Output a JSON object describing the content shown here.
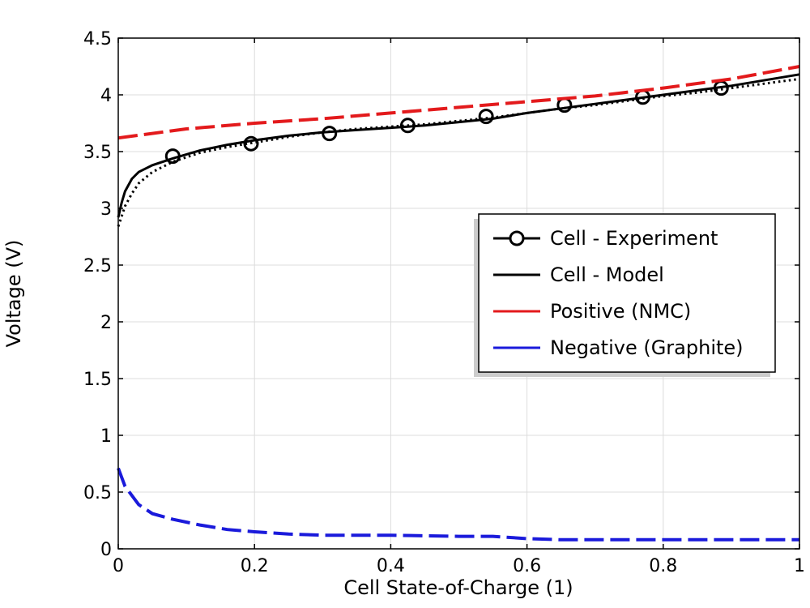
{
  "chart_data": {
    "type": "line",
    "xlabel": "Cell State-of-Charge (1)",
    "ylabel": "Voltage (V)",
    "xlim": [
      0,
      1
    ],
    "ylim": [
      0,
      4.5
    ],
    "xticks": [
      "0",
      "0.2",
      "0.4",
      "0.6",
      "0.8",
      "1"
    ],
    "yticks": [
      "0",
      "0.5",
      "1",
      "1.5",
      "2",
      "2.5",
      "3",
      "3.5",
      "4",
      "4.5"
    ],
    "grid": true,
    "legend_position": "center-right",
    "series": [
      {
        "name": "Cell - Experiment",
        "style": "markers-circle",
        "color": "#000000",
        "x": [
          0.08,
          0.195,
          0.31,
          0.425,
          0.54,
          0.655,
          0.77,
          0.885
        ],
        "y": [
          3.46,
          3.57,
          3.66,
          3.73,
          3.81,
          3.91,
          3.98,
          4.06
        ]
      },
      {
        "name": "Cell - Model",
        "style": "solid",
        "color": "#000000",
        "x": [
          0,
          0.005,
          0.01,
          0.02,
          0.03,
          0.05,
          0.08,
          0.12,
          0.16,
          0.2,
          0.25,
          0.3,
          0.35,
          0.4,
          0.45,
          0.5,
          0.55,
          0.6,
          0.65,
          0.7,
          0.75,
          0.8,
          0.85,
          0.9,
          0.95,
          1.0
        ],
        "y": [
          2.92,
          3.05,
          3.15,
          3.26,
          3.32,
          3.38,
          3.44,
          3.51,
          3.56,
          3.6,
          3.64,
          3.67,
          3.69,
          3.71,
          3.73,
          3.76,
          3.79,
          3.84,
          3.88,
          3.92,
          3.96,
          4.0,
          4.04,
          4.08,
          4.13,
          4.18
        ]
      },
      {
        "name": "",
        "style": "dotted",
        "color": "#000000",
        "x": [
          0,
          0.005,
          0.01,
          0.02,
          0.03,
          0.05,
          0.08,
          0.12,
          0.16,
          0.2,
          0.25,
          0.3,
          0.35,
          0.4,
          0.45,
          0.5,
          0.55,
          0.6,
          0.65,
          0.7,
          0.75,
          0.8,
          0.85,
          0.9,
          0.95,
          1.0
        ],
        "y": [
          2.84,
          2.93,
          3.02,
          3.13,
          3.22,
          3.32,
          3.41,
          3.49,
          3.54,
          3.58,
          3.63,
          3.67,
          3.7,
          3.72,
          3.74,
          3.77,
          3.8,
          3.84,
          3.88,
          3.91,
          3.95,
          3.99,
          4.02,
          4.06,
          4.1,
          4.14
        ]
      },
      {
        "name": "Positive (NMC)",
        "style": "dashed",
        "color": "#e31a1c",
        "x": [
          0,
          0.1,
          0.2,
          0.3,
          0.4,
          0.5,
          0.6,
          0.7,
          0.8,
          0.9,
          1.0
        ],
        "y": [
          3.62,
          3.7,
          3.75,
          3.79,
          3.84,
          3.89,
          3.94,
          3.99,
          4.06,
          4.14,
          4.25
        ]
      },
      {
        "name": "Negative (Graphite)",
        "style": "dashed",
        "color": "#1a1adb",
        "x": [
          0,
          0.005,
          0.01,
          0.02,
          0.03,
          0.05,
          0.08,
          0.12,
          0.16,
          0.2,
          0.25,
          0.3,
          0.4,
          0.5,
          0.55,
          0.6,
          0.65,
          0.7,
          0.8,
          0.9,
          1.0
        ],
        "y": [
          0.71,
          0.63,
          0.55,
          0.47,
          0.39,
          0.31,
          0.26,
          0.21,
          0.17,
          0.15,
          0.13,
          0.12,
          0.12,
          0.11,
          0.11,
          0.09,
          0.08,
          0.08,
          0.08,
          0.08,
          0.08
        ]
      }
    ]
  }
}
